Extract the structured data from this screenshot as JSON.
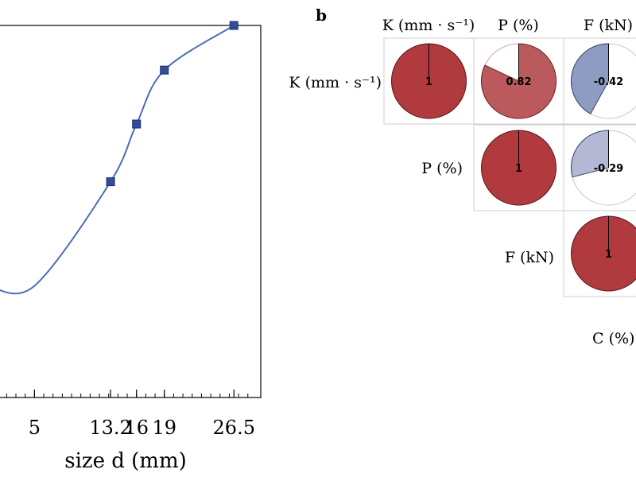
{
  "chart_data": [
    {
      "type": "line",
      "panel": "",
      "xlabel": "size d (mm)",
      "xticks": [
        "5",
        "13.2",
        "16",
        "19",
        "26.5"
      ],
      "points": [
        {
          "x": 13.2,
          "y": 0.58
        },
        {
          "x": 16,
          "y": 0.735
        },
        {
          "x": 19,
          "y": 0.88
        },
        {
          "x": 26.5,
          "y": 1.0
        }
      ],
      "colors": {
        "line": "#4a6fb5",
        "marker": "#2f4f9e"
      }
    },
    {
      "type": "heatmap",
      "panel": "b",
      "variables": [
        "K (mm · s⁻¹)",
        "P (%)",
        "F (kN)"
      ],
      "cells": [
        {
          "row": 0,
          "col": 0,
          "value": 1,
          "label": "1"
        },
        {
          "row": 0,
          "col": 1,
          "value": 0.82,
          "label": "0.82"
        },
        {
          "row": 0,
          "col": 2,
          "value": -0.42,
          "label": "-0.42"
        },
        {
          "row": 1,
          "col": 1,
          "value": 1,
          "label": "1"
        },
        {
          "row": 1,
          "col": 2,
          "value": -0.29,
          "label": "-0.29"
        },
        {
          "row": 2,
          "col": 2,
          "value": 1,
          "label": "1"
        }
      ],
      "extra_label": "C (%)",
      "colors": {
        "positive": "#b03a3e",
        "negative": "#8e9cc4",
        "negative_light": "#b4b8d4"
      }
    }
  ]
}
